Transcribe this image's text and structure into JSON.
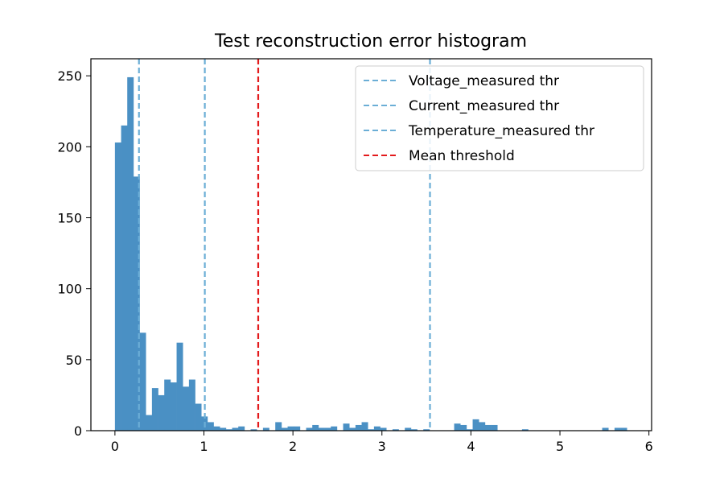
{
  "chart_data": {
    "type": "bar",
    "title": "Test reconstruction error histogram",
    "xlabel": "",
    "ylabel": "",
    "xlim": [
      -0.27,
      6.03
    ],
    "ylim": [
      0,
      262
    ],
    "xticks": [
      0,
      1,
      2,
      3,
      4,
      5,
      6
    ],
    "yticks": [
      0,
      50,
      100,
      150,
      200,
      250
    ],
    "bin_start": 0.0,
    "bin_width": 0.0693,
    "bar_color": "#4a90c4",
    "counts": [
      203,
      215,
      249,
      179,
      69,
      11,
      30,
      25,
      36,
      34,
      62,
      31,
      36,
      19,
      10,
      6,
      3,
      2,
      1,
      2,
      3,
      0,
      1,
      0,
      2,
      0,
      6,
      2,
      3,
      3,
      0,
      2,
      4,
      2,
      2,
      3,
      0,
      5,
      2,
      4,
      6,
      1,
      3,
      2,
      0,
      1,
      0,
      2,
      1,
      0,
      1,
      0,
      0,
      0,
      0,
      5,
      4,
      1,
      8,
      6,
      4,
      4,
      0,
      0,
      0,
      0,
      1,
      0,
      0,
      0,
      0,
      0,
      0,
      0,
      0,
      0,
      0,
      0,
      0,
      2,
      0,
      2,
      2
    ],
    "thresholds": [
      {
        "name": "Voltage_measured thr",
        "value": 0.27,
        "color": "#6baed6"
      },
      {
        "name": "Current_measured thr",
        "value": 1.01,
        "color": "#6baed6"
      },
      {
        "name": "Temperature_measured thr",
        "value": 3.54,
        "color": "#6baed6"
      },
      {
        "name": "Mean threshold",
        "value": 1.61,
        "color": "#e31a1c"
      }
    ],
    "legend": {
      "position": "top-right",
      "entries": [
        "Voltage_measured thr",
        "Current_measured thr",
        "Temperature_measured thr",
        "Mean threshold"
      ]
    }
  }
}
